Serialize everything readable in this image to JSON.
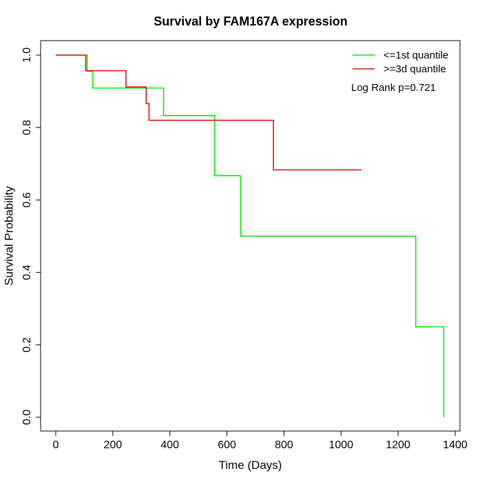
{
  "chart_data": {
    "type": "line",
    "subtype": "step",
    "title": "Survival by FAM167A expression",
    "xlabel": "Time (Days)",
    "ylabel": "Survival Probability",
    "xlim": [
      0,
      1400
    ],
    "ylim": [
      0,
      1.0
    ],
    "xticks": [
      0,
      200,
      400,
      600,
      800,
      1000,
      1200,
      1400
    ],
    "yticks": [
      0.0,
      0.2,
      0.4,
      0.6,
      0.8,
      1.0
    ],
    "xtick_labels": [
      "0",
      "200",
      "400",
      "600",
      "800",
      "1000",
      "1200",
      "1400"
    ],
    "ytick_labels": [
      "0.0",
      "0.2",
      "0.4",
      "0.6",
      "0.8",
      "1.0"
    ],
    "grid": false,
    "legend_position": "top-right",
    "annotation": "Log Rank p=0.721",
    "series": [
      {
        "name": "<=1st quantile",
        "color": "#00ee00",
        "x": [
          0,
          110,
          130,
          378,
          557,
          648,
          1262,
          1360
        ],
        "y": [
          1.0,
          0.955,
          0.909,
          0.833,
          0.667,
          0.5,
          0.25,
          0.0
        ]
      },
      {
        "name": ">=3d quantile",
        "color": "#dd1111",
        "x": [
          0,
          105,
          246,
          317,
          327,
          763,
          1072
        ],
        "y": [
          1.0,
          0.957,
          0.912,
          0.866,
          0.82,
          0.683,
          0.683
        ]
      }
    ]
  }
}
